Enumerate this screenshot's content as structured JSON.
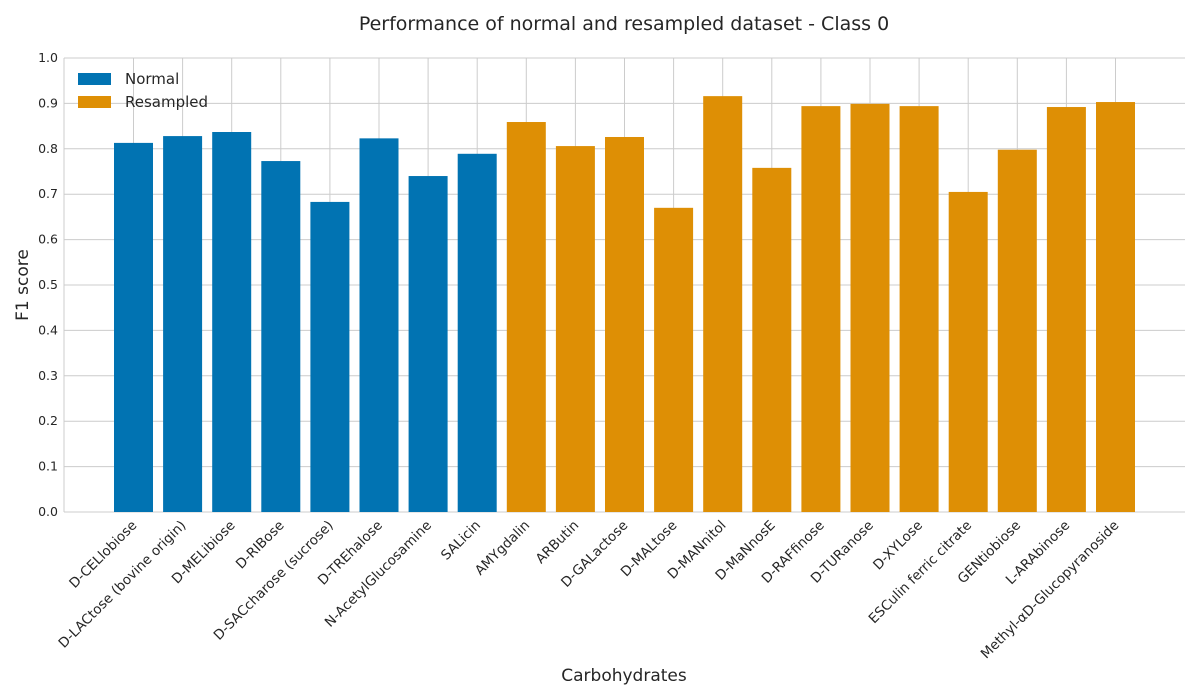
{
  "chart_data": {
    "type": "bar",
    "title": "Performance of normal and resampled dataset - Class 0",
    "xlabel": "Carbohydrates",
    "ylabel": "F1 score",
    "ylim": [
      0,
      1.0
    ],
    "yticks": [
      "0.0",
      "0.1",
      "0.2",
      "0.3",
      "0.4",
      "0.5",
      "0.6",
      "0.7",
      "0.8",
      "0.9",
      "1.0"
    ],
    "grid": true,
    "legend_position": "top-left",
    "categories": [
      "D-CELlobiose",
      "D-LACtose (bovine origin)",
      "D-MELibiose",
      "D-RIBose",
      "D-SACcharose (sucrose)",
      "D-TREhalose",
      "N-AcetylGlucosamine",
      "SALicin",
      "AMYgdalin",
      "ARButin",
      "D-GALactose",
      "D-MALtose",
      "D-MANnitol",
      "D-MaNnosE",
      "D-RAFfinose",
      "D-TURanose",
      "D-XYLose",
      "ESCulin ferric citrate",
      "GENtiobiose",
      "L-ARAbinose",
      "Methyl-αD-Glucopyranoside"
    ],
    "series": [
      {
        "name": "Normal",
        "color": "#0173b2",
        "values": [
          0.813,
          0.828,
          0.837,
          0.773,
          0.683,
          0.823,
          0.74,
          0.789,
          null,
          null,
          null,
          null,
          null,
          null,
          null,
          null,
          null,
          null,
          null,
          null,
          null
        ]
      },
      {
        "name": "Resampled",
        "color": "#de8f05",
        "values": [
          null,
          null,
          null,
          null,
          null,
          null,
          null,
          null,
          0.859,
          0.806,
          0.826,
          0.67,
          0.916,
          0.758,
          0.894,
          0.899,
          0.894,
          0.705,
          0.798,
          0.892,
          0.903
        ]
      }
    ]
  }
}
